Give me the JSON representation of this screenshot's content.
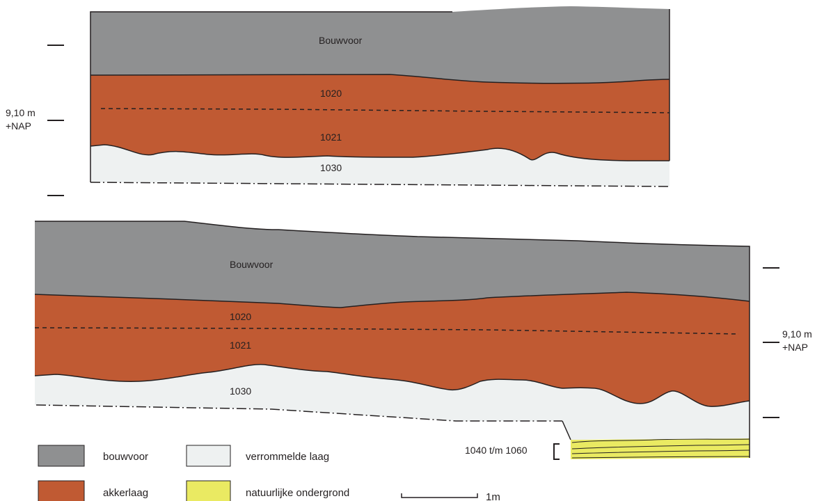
{
  "colors": {
    "bouwvoor": "#8f9091",
    "akkerlaag": "#c05a33",
    "verrommelde_laag": "#eef1f1",
    "natuurlijke_ondergrond": "#eaea62",
    "outline": "#231f20"
  },
  "section_top": {
    "labels": {
      "bouwvoor": "Bouwvoor",
      "layer_1020": "1020",
      "layer_1021": "1021",
      "layer_1030": "1030"
    },
    "nap_label_line1": "9,10 m",
    "nap_label_line2": "+NAP"
  },
  "section_bottom": {
    "labels": {
      "bouwvoor": "Bouwvoor",
      "layer_1020": "1020",
      "layer_1021": "1021",
      "layer_1030": "1030",
      "layers_1040_1060": "1040 t/m 1060"
    },
    "nap_label_line1": "9,10 m",
    "nap_label_line2": "+NAP"
  },
  "legend": {
    "items": [
      {
        "label": "bouwvoor",
        "icon": "bouwvoor-swatch"
      },
      {
        "label": "akkerlaag",
        "icon": "akkerlaag-swatch"
      },
      {
        "label": "verrommelde laag",
        "icon": "verrommelde-laag-swatch"
      },
      {
        "label": "natuurlijke ondergrond",
        "icon": "natuurlijke-ondergrond-swatch"
      }
    ],
    "scale_label": "1m"
  }
}
